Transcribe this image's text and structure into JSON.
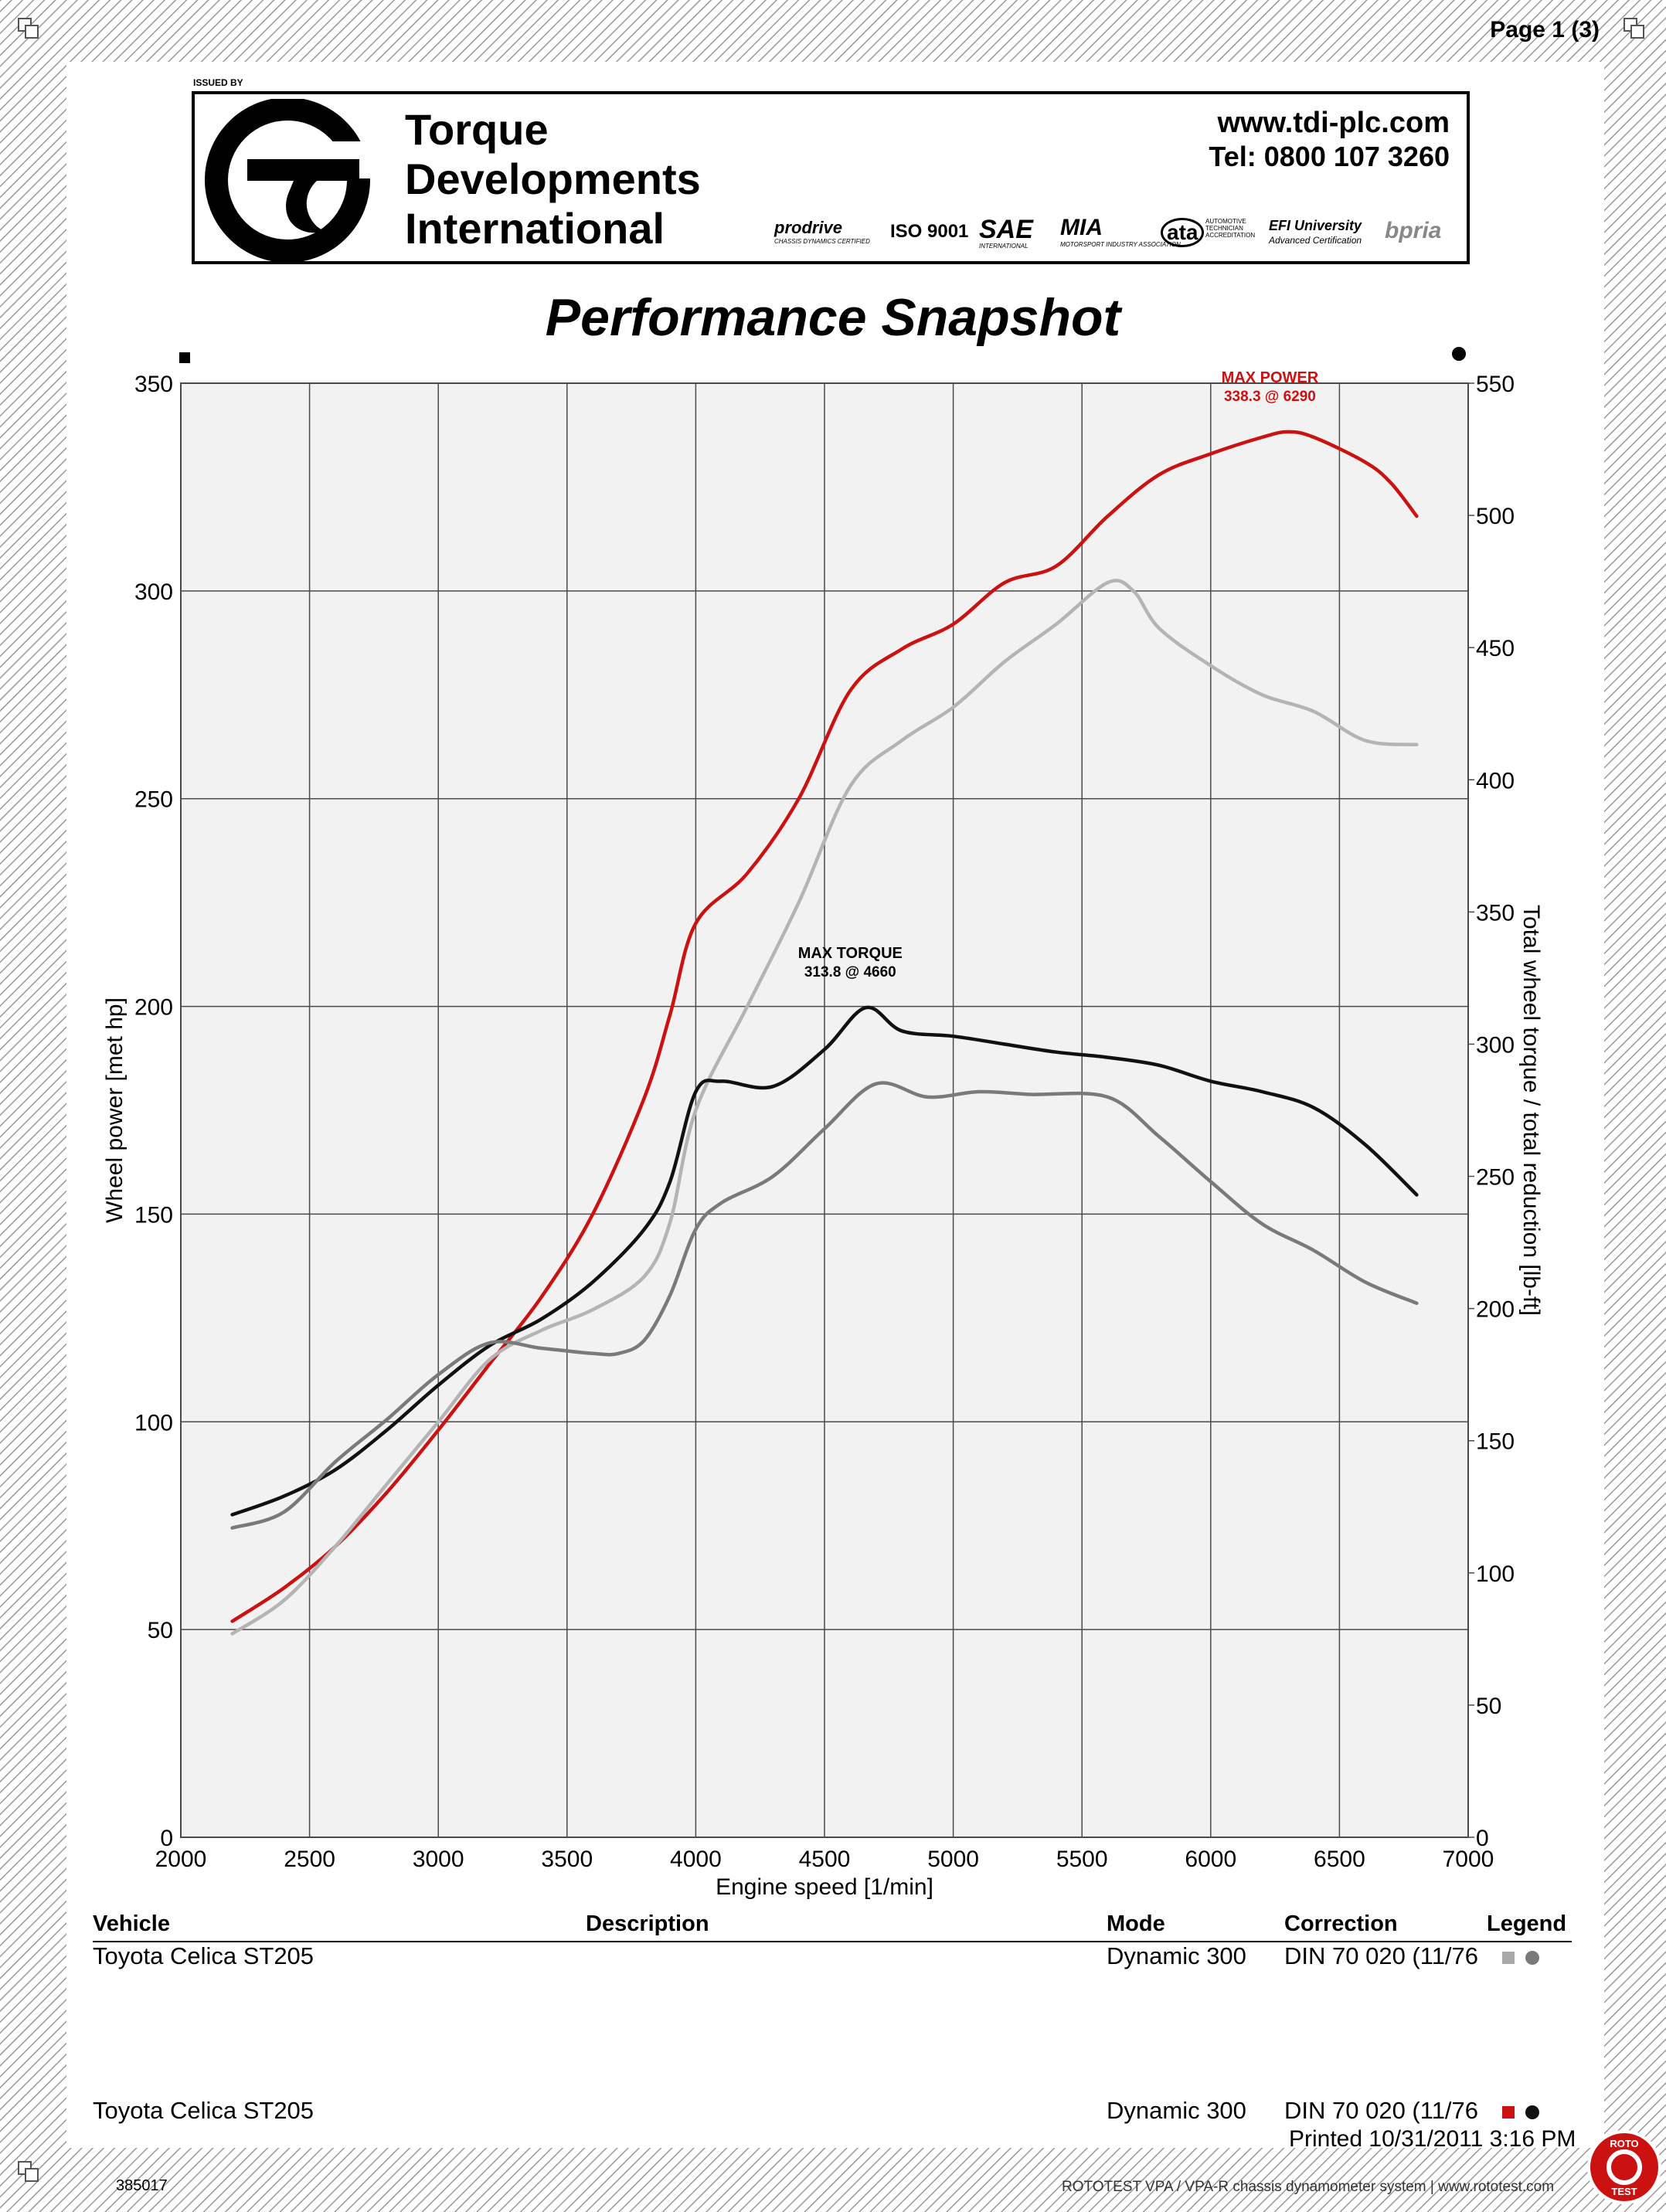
{
  "page": {
    "number_label": "Page 1 (3)"
  },
  "header": {
    "issued_by": "ISSUED BY",
    "company_lines": [
      "Torque",
      "Developments",
      "International"
    ],
    "website": "www.tdi-plc.com",
    "phone": "Tel: 0800 107 3260",
    "certifications": [
      {
        "name": "prodrive",
        "sub": "CHASSIS DYNAMICS CERTIFIED"
      },
      {
        "name": "ISO 9001",
        "sub": ""
      },
      {
        "name": "SAE",
        "sub": "INTERNATIONAL"
      },
      {
        "name": "MIA",
        "sub": "MOTORSPORT INDUSTRY ASSOCIATION"
      },
      {
        "name": "ata",
        "sub": "AUTOMOTIVE TECHNICIAN ACCREDITATION"
      },
      {
        "name": "EFI University",
        "sub": "Advanced Certification"
      },
      {
        "name": "bpria",
        "sub": ""
      }
    ]
  },
  "chart_data": {
    "type": "line",
    "title": "Performance Snapshot",
    "xlabel": "Engine speed [1/min]",
    "ylabel_left": "Wheel power [met hp]",
    "ylabel_right": "Total wheel torque / total reduction [lb-ft]",
    "xlim": [
      2000,
      7000
    ],
    "ylim_left": [
      0,
      350
    ],
    "ylim_right": [
      0,
      550
    ],
    "x_ticks": [
      2000,
      2500,
      3000,
      3500,
      4000,
      4500,
      5000,
      5500,
      6000,
      6500,
      7000
    ],
    "y_left_ticks": [
      0,
      50,
      100,
      150,
      200,
      250,
      300,
      350
    ],
    "y_right_ticks": [
      0,
      50,
      100,
      150,
      200,
      250,
      300,
      350,
      400,
      450,
      500,
      550
    ],
    "grid": true,
    "legend_markers": {
      "left_axis": "square",
      "right_axis": "circle"
    },
    "annotations": [
      {
        "label": "MAX POWER",
        "value": "338.3 @ 6290",
        "x": 6290,
        "y": 338.3,
        "axis": "left",
        "color": "#cc1111"
      },
      {
        "label": "MAX TORQUE",
        "value": "313.8 @ 4660",
        "x": 4660,
        "y": 313.8,
        "axis": "right",
        "color": "#000000"
      }
    ],
    "series": [
      {
        "run": 2,
        "quantity": "power",
        "axis": "left",
        "color": "#cc1111",
        "points": [
          [
            2200,
            52
          ],
          [
            2400,
            60
          ],
          [
            2600,
            70
          ],
          [
            2800,
            83
          ],
          [
            3000,
            98
          ],
          [
            3200,
            114
          ],
          [
            3400,
            130
          ],
          [
            3600,
            150
          ],
          [
            3800,
            178
          ],
          [
            3900,
            198
          ],
          [
            4000,
            220
          ],
          [
            4200,
            232
          ],
          [
            4400,
            250
          ],
          [
            4600,
            276
          ],
          [
            4800,
            286
          ],
          [
            5000,
            292
          ],
          [
            5200,
            302
          ],
          [
            5400,
            306
          ],
          [
            5600,
            318
          ],
          [
            5800,
            328
          ],
          [
            6000,
            333
          ],
          [
            6200,
            337
          ],
          [
            6300,
            338.3
          ],
          [
            6400,
            337
          ],
          [
            6600,
            331
          ],
          [
            6700,
            326
          ],
          [
            6800,
            318
          ]
        ]
      },
      {
        "run": 1,
        "quantity": "power",
        "axis": "left",
        "color": "#b4b4b4",
        "points": [
          [
            2200,
            49
          ],
          [
            2400,
            57
          ],
          [
            2600,
            70
          ],
          [
            2800,
            85
          ],
          [
            3000,
            100
          ],
          [
            3200,
            115
          ],
          [
            3400,
            122
          ],
          [
            3600,
            127
          ],
          [
            3800,
            135
          ],
          [
            3900,
            148
          ],
          [
            4000,
            175
          ],
          [
            4200,
            200
          ],
          [
            4400,
            225
          ],
          [
            4600,
            253
          ],
          [
            4800,
            264
          ],
          [
            5000,
            272
          ],
          [
            5200,
            283
          ],
          [
            5400,
            292
          ],
          [
            5600,
            302
          ],
          [
            5700,
            300
          ],
          [
            5800,
            291
          ],
          [
            6000,
            282
          ],
          [
            6200,
            275
          ],
          [
            6400,
            271
          ],
          [
            6600,
            264
          ],
          [
            6800,
            263
          ]
        ]
      },
      {
        "run": 2,
        "quantity": "torque",
        "axis": "right",
        "color": "#111111",
        "points": [
          [
            2200,
            122
          ],
          [
            2400,
            129
          ],
          [
            2600,
            139
          ],
          [
            2800,
            154
          ],
          [
            3000,
            171
          ],
          [
            3200,
            186
          ],
          [
            3400,
            196
          ],
          [
            3600,
            210
          ],
          [
            3800,
            230
          ],
          [
            3900,
            248
          ],
          [
            4000,
            282
          ],
          [
            4100,
            286
          ],
          [
            4300,
            284
          ],
          [
            4500,
            298
          ],
          [
            4660,
            313.8
          ],
          [
            4800,
            305
          ],
          [
            5000,
            303
          ],
          [
            5200,
            300
          ],
          [
            5400,
            297
          ],
          [
            5600,
            295
          ],
          [
            5800,
            292
          ],
          [
            6000,
            286
          ],
          [
            6200,
            282
          ],
          [
            6400,
            276
          ],
          [
            6600,
            262
          ],
          [
            6800,
            243
          ]
        ]
      },
      {
        "run": 1,
        "quantity": "torque",
        "axis": "right",
        "color": "#7a7a7a",
        "points": [
          [
            2200,
            117
          ],
          [
            2400,
            123
          ],
          [
            2600,
            142
          ],
          [
            2800,
            158
          ],
          [
            3000,
            175
          ],
          [
            3200,
            187
          ],
          [
            3400,
            185
          ],
          [
            3600,
            183
          ],
          [
            3700,
            183
          ],
          [
            3800,
            188
          ],
          [
            3900,
            205
          ],
          [
            4000,
            230
          ],
          [
            4100,
            240
          ],
          [
            4300,
            250
          ],
          [
            4500,
            268
          ],
          [
            4700,
            285
          ],
          [
            4900,
            280
          ],
          [
            5100,
            282
          ],
          [
            5300,
            281
          ],
          [
            5600,
            280
          ],
          [
            5800,
            265
          ],
          [
            6000,
            248
          ],
          [
            6200,
            232
          ],
          [
            6400,
            222
          ],
          [
            6600,
            210
          ],
          [
            6800,
            202
          ]
        ]
      }
    ]
  },
  "results_table": {
    "headers": {
      "vehicle": "Vehicle",
      "description": "Description",
      "mode": "Mode",
      "correction": "Correction",
      "legend": "Legend"
    },
    "rows": [
      {
        "vehicle": "Toyota  Celica ST205",
        "description": "",
        "mode": "Dynamic 300",
        "correction": "DIN 70 020 (11/76",
        "swatch_color": "#a8a8a8",
        "dot_color": "#7a7a7a"
      },
      {
        "vehicle": "Toyota Celica ST205",
        "description": "",
        "mode": "Dynamic 300",
        "correction": "DIN 70 020 (11/76",
        "swatch_color": "#cc1111",
        "dot_color": "#111111"
      }
    ]
  },
  "footer": {
    "printed": "Printed 10/31/2011 3:16 PM",
    "serial": "385017",
    "system_text": "ROTOTEST VPA / VPA-R chassis dynamometer system  |  www.rototest.com",
    "badge_top": "ROTO",
    "badge_bottom": "TEST"
  }
}
